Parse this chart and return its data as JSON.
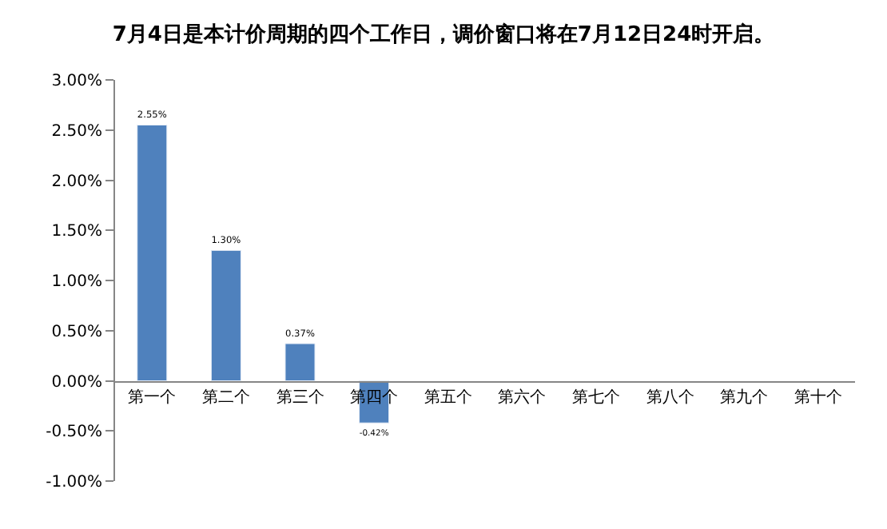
{
  "chart_data": {
    "type": "bar",
    "title": "7月4日是本计价周期的四个工作日，调价窗口将在7月12日24时开启。",
    "categories": [
      "第一个",
      "第二个",
      "第三个",
      "第四个",
      "第五个",
      "第六个",
      "第七个",
      "第八个",
      "第九个",
      "第十个"
    ],
    "values": [
      2.55,
      1.3,
      0.37,
      -0.42,
      null,
      null,
      null,
      null,
      null,
      null
    ],
    "value_labels": [
      "2.55%",
      "1.30%",
      "0.37%",
      "-0.42%",
      null,
      null,
      null,
      null,
      null,
      null
    ],
    "color": "#4f81bd",
    "ylim": [
      -1,
      3
    ],
    "yticks": [
      {
        "value": -1,
        "label": "-1.00%"
      },
      {
        "value": -0.5,
        "label": "-0.50%"
      },
      {
        "value": 0,
        "label": "0.00%"
      },
      {
        "value": 0.5,
        "label": "0.50%"
      },
      {
        "value": 1,
        "label": "1.00%"
      },
      {
        "value": 1.5,
        "label": "1.50%"
      },
      {
        "value": 2,
        "label": "2.00%"
      },
      {
        "value": 2.5,
        "label": "2.50%"
      },
      {
        "value": 3,
        "label": "3.00%"
      }
    ],
    "legend": false
  }
}
